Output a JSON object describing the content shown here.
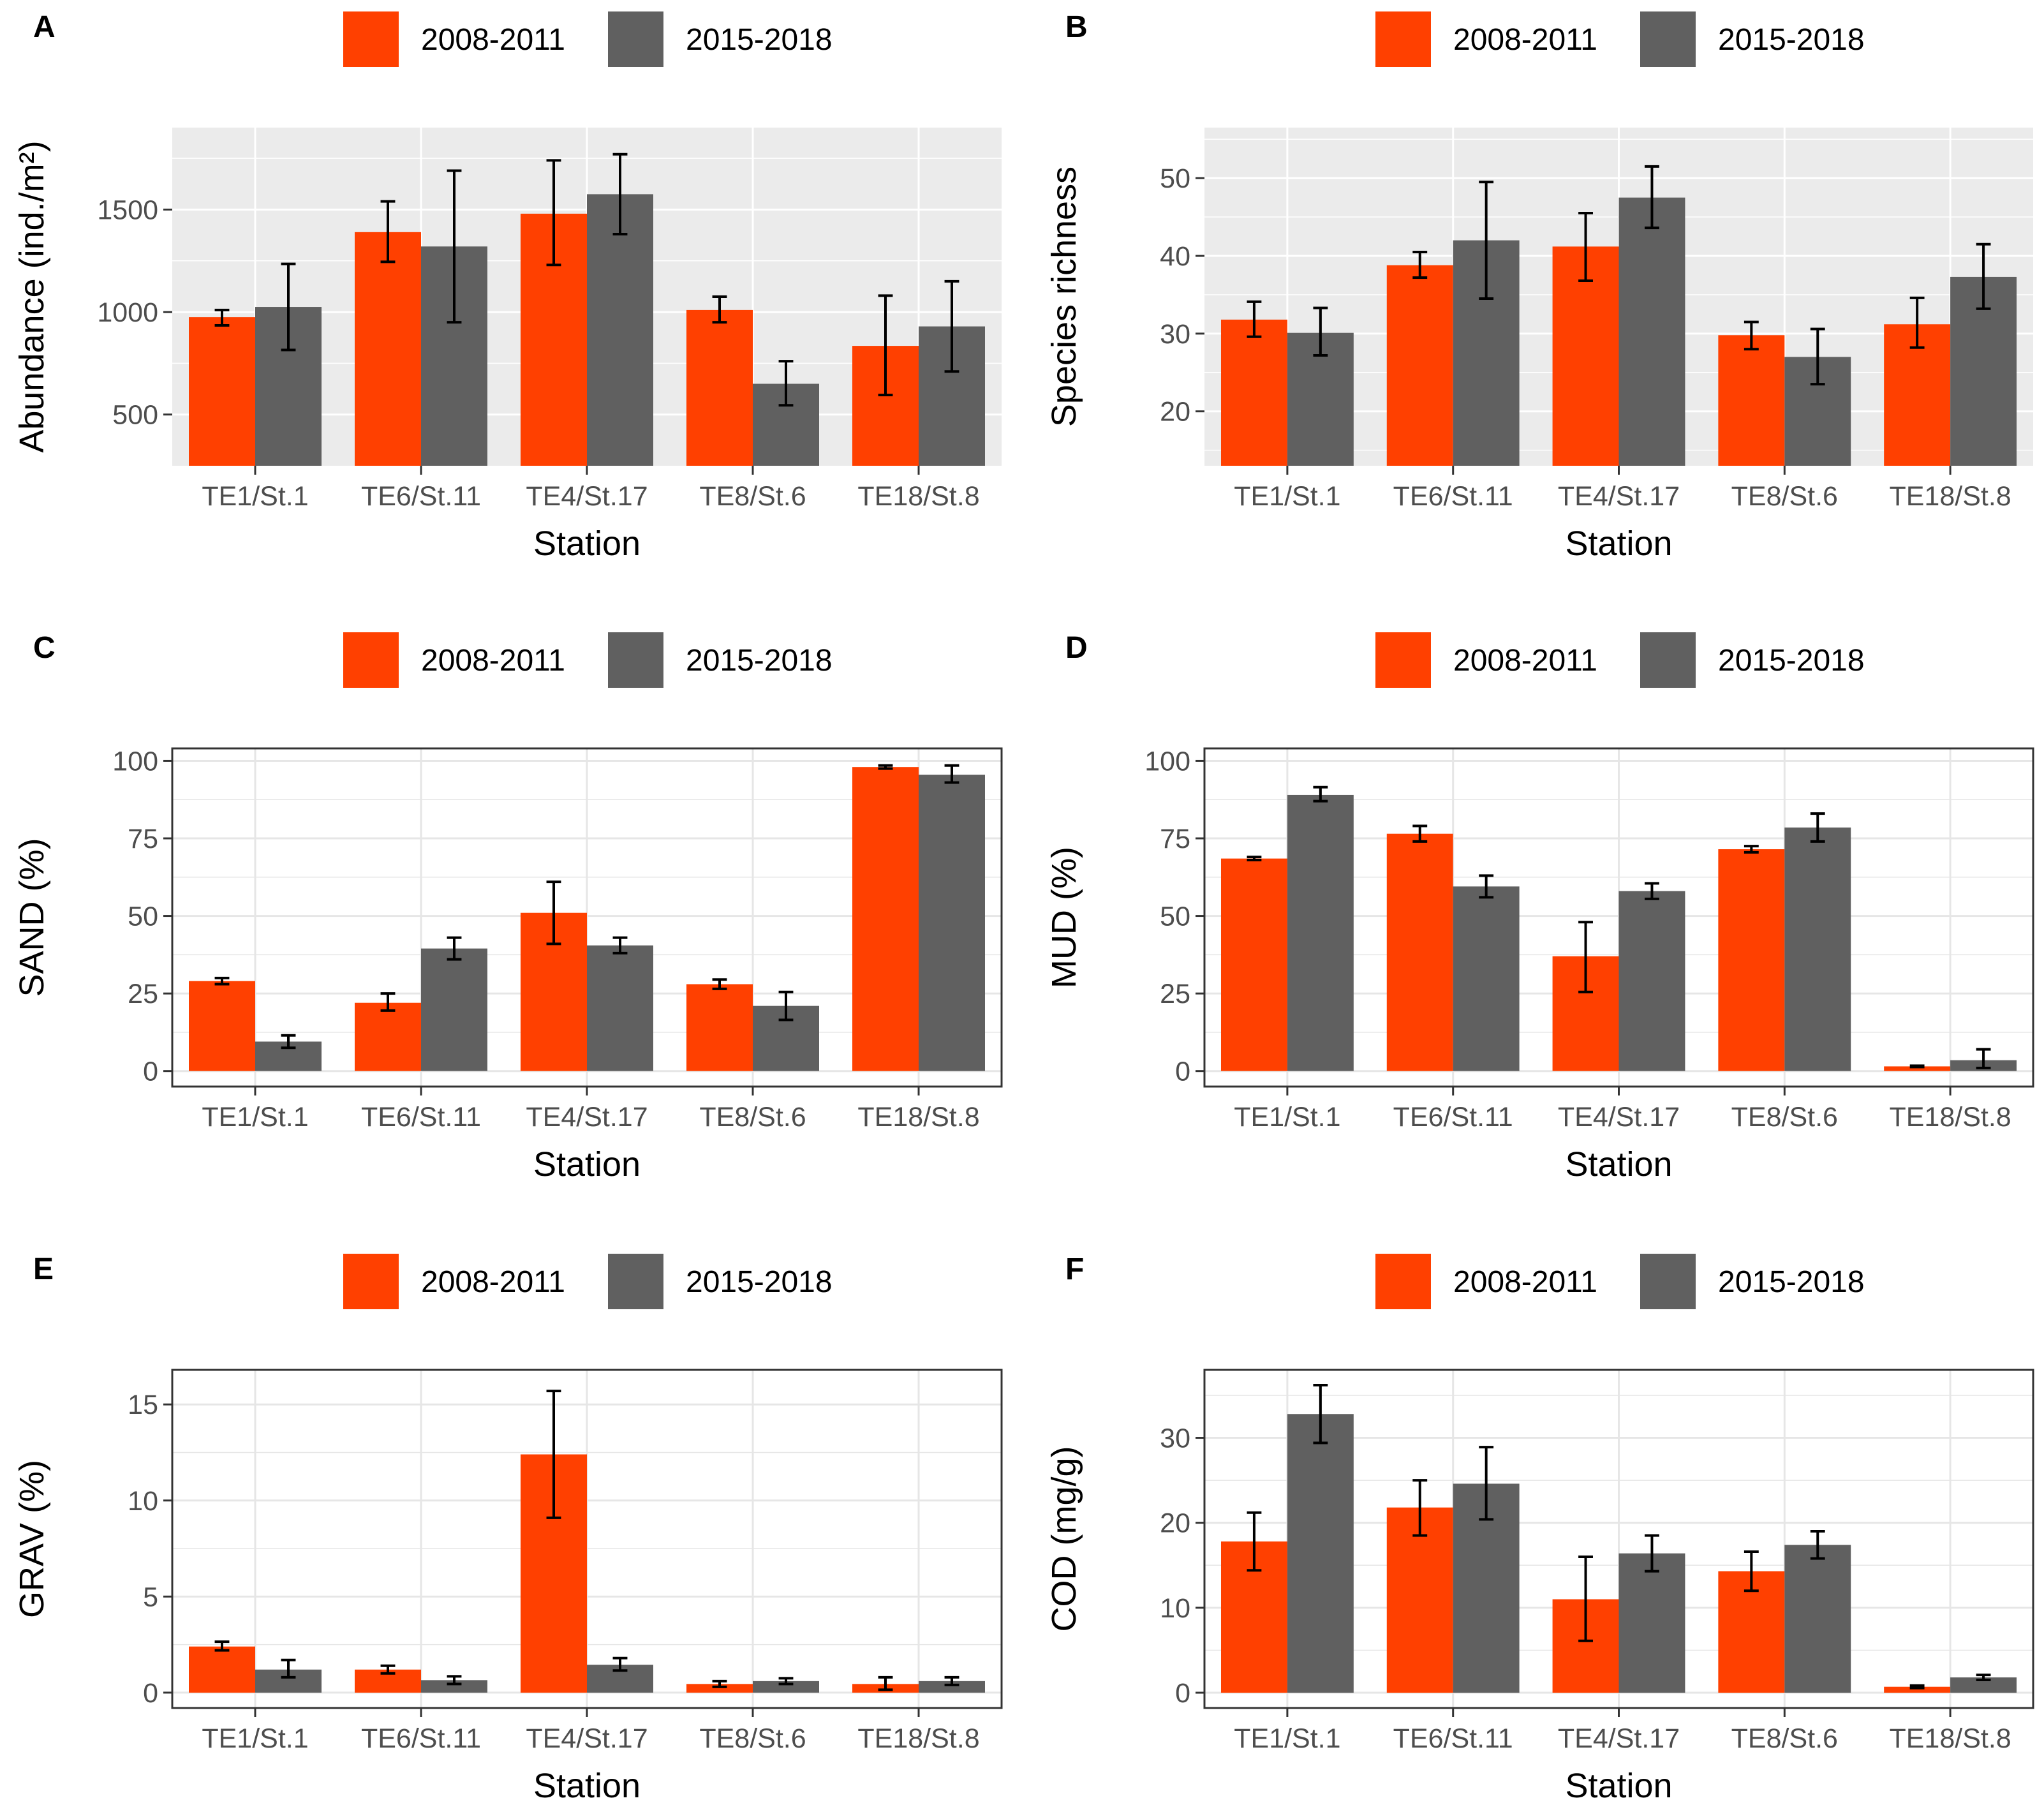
{
  "colors": {
    "period1": "#ff4000",
    "period2": "#606060",
    "error_bar": "#000000",
    "panel_bg_gray": "#ebebeb",
    "grid_gray_theme": "#ffffff",
    "grid_bw_theme": "#e6e6e6",
    "frame_bw_theme": "#333333"
  },
  "chart_data": [
    {
      "panel": "A",
      "type": "bar",
      "theme": "gray",
      "legend": [
        "2008-2011",
        "2015-2018"
      ],
      "categories": [
        "TE1/St.1",
        "TE6/St.11",
        "TE4/St.17",
        "TE8/St.6",
        "TE18/St.8"
      ],
      "xlabel": "Station",
      "ylabel": "Abundance (ind./m²)",
      "ylim": [
        250,
        1900
      ],
      "yticks": [
        500,
        1000,
        1500
      ],
      "series": [
        {
          "name": "2008-2011",
          "values": [
            975,
            1390,
            1480,
            1010,
            835
          ],
          "err_low": [
            935,
            1245,
            1230,
            950,
            595
          ],
          "err_high": [
            1010,
            1540,
            1740,
            1075,
            1080
          ]
        },
        {
          "name": "2015-2018",
          "values": [
            1025,
            1320,
            1575,
            650,
            930
          ],
          "err_low": [
            815,
            950,
            1380,
            545,
            710
          ],
          "err_high": [
            1235,
            1690,
            1770,
            760,
            1150
          ]
        }
      ]
    },
    {
      "panel": "B",
      "type": "bar",
      "theme": "gray",
      "legend": [
        "2008-2011",
        "2015-2018"
      ],
      "categories": [
        "TE1/St.1",
        "TE6/St.11",
        "TE4/St.17",
        "TE8/St.6",
        "TE18/St.8"
      ],
      "xlabel": "Station",
      "ylabel": "Species richness",
      "ylim": [
        13,
        56.5
      ],
      "yticks": [
        20,
        30,
        40,
        50
      ],
      "series": [
        {
          "name": "2008-2011",
          "values": [
            31.8,
            38.8,
            41.2,
            29.8,
            31.2
          ],
          "err_low": [
            29.6,
            37.2,
            36.8,
            28.0,
            28.2
          ],
          "err_high": [
            34.1,
            40.5,
            45.5,
            31.5,
            34.6
          ]
        },
        {
          "name": "2015-2018",
          "values": [
            30.1,
            42.0,
            47.5,
            27.0,
            37.3
          ],
          "err_low": [
            27.2,
            34.5,
            43.6,
            23.5,
            33.2
          ],
          "err_high": [
            33.3,
            49.5,
            51.5,
            30.6,
            41.5
          ]
        }
      ]
    },
    {
      "panel": "C",
      "type": "bar",
      "theme": "bw",
      "legend": [
        "2008-2011",
        "2015-2018"
      ],
      "categories": [
        "TE1/St.1",
        "TE6/St.11",
        "TE4/St.17",
        "TE8/St.6",
        "TE18/St.8"
      ],
      "xlabel": "Station",
      "ylabel": "SAND (%)",
      "ylim": [
        -5,
        104
      ],
      "yticks": [
        0,
        25,
        50,
        75,
        100
      ],
      "series": [
        {
          "name": "2008-2011",
          "values": [
            29,
            22,
            51,
            28,
            98
          ],
          "err_low": [
            28,
            19.5,
            41,
            26.5,
            97.5
          ],
          "err_high": [
            30,
            25,
            61,
            29.5,
            98.5
          ]
        },
        {
          "name": "2015-2018",
          "values": [
            9.5,
            39.5,
            40.5,
            21,
            95.5
          ],
          "err_low": [
            7.5,
            36,
            38,
            16.5,
            93
          ],
          "err_high": [
            11.5,
            43,
            43,
            25.5,
            98.5
          ]
        }
      ]
    },
    {
      "panel": "D",
      "type": "bar",
      "theme": "bw",
      "legend": [
        "2008-2011",
        "2015-2018"
      ],
      "categories": [
        "TE1/St.1",
        "TE6/St.11",
        "TE4/St.17",
        "TE8/St.6",
        "TE18/St.8"
      ],
      "xlabel": "Station",
      "ylabel": "MUD (%)",
      "ylim": [
        -5,
        104
      ],
      "yticks": [
        0,
        25,
        50,
        75,
        100
      ],
      "series": [
        {
          "name": "2008-2011",
          "values": [
            68.5,
            76.5,
            37,
            71.5,
            1.5
          ],
          "err_low": [
            68,
            74,
            25.5,
            70.5,
            1.3
          ],
          "err_high": [
            69,
            79,
            48,
            72.5,
            1.7
          ]
        },
        {
          "name": "2015-2018",
          "values": [
            89,
            59.5,
            58,
            78.5,
            3.5
          ],
          "err_low": [
            87,
            56,
            55.5,
            74,
            1
          ],
          "err_high": [
            91.5,
            63,
            60.5,
            83,
            7
          ]
        }
      ]
    },
    {
      "panel": "E",
      "type": "bar",
      "theme": "bw",
      "legend": [
        "2008-2011",
        "2015-2018"
      ],
      "categories": [
        "TE1/St.1",
        "TE6/St.11",
        "TE4/St.17",
        "TE8/St.6",
        "TE18/St.8"
      ],
      "xlabel": "Station",
      "ylabel": "GRAV (%)",
      "ylim": [
        -0.8,
        16.8
      ],
      "yticks": [
        0,
        5,
        10,
        15
      ],
      "series": [
        {
          "name": "2008-2011",
          "values": [
            2.4,
            1.2,
            12.4,
            0.45,
            0.45
          ],
          "err_low": [
            2.2,
            1.0,
            9.1,
            0.3,
            0.15
          ],
          "err_high": [
            2.65,
            1.4,
            15.7,
            0.6,
            0.8
          ]
        },
        {
          "name": "2015-2018",
          "values": [
            1.2,
            0.65,
            1.45,
            0.6,
            0.6
          ],
          "err_low": [
            0.8,
            0.45,
            1.15,
            0.45,
            0.4
          ],
          "err_high": [
            1.7,
            0.85,
            1.8,
            0.75,
            0.8
          ]
        }
      ]
    },
    {
      "panel": "F",
      "type": "bar",
      "theme": "bw",
      "legend": [
        "2008-2011",
        "2015-2018"
      ],
      "categories": [
        "TE1/St.1",
        "TE6/St.11",
        "TE4/St.17",
        "TE8/St.6",
        "TE18/St.8"
      ],
      "xlabel": "Station",
      "ylabel": "COD (mg/g)",
      "ylim": [
        -1.8,
        38
      ],
      "yticks": [
        0,
        10,
        20,
        30
      ],
      "series": [
        {
          "name": "2008-2011",
          "values": [
            17.8,
            21.8,
            11,
            14.3,
            0.7
          ],
          "err_low": [
            14.4,
            18.5,
            6.1,
            12,
            0.55
          ],
          "err_high": [
            21.2,
            25,
            16,
            16.6,
            0.85
          ]
        },
        {
          "name": "2015-2018",
          "values": [
            32.8,
            24.6,
            16.4,
            17.4,
            1.8
          ],
          "err_low": [
            29.4,
            20.4,
            14.3,
            15.8,
            1.5
          ],
          "err_high": [
            36.2,
            28.9,
            18.5,
            19,
            2.1
          ]
        }
      ]
    }
  ]
}
